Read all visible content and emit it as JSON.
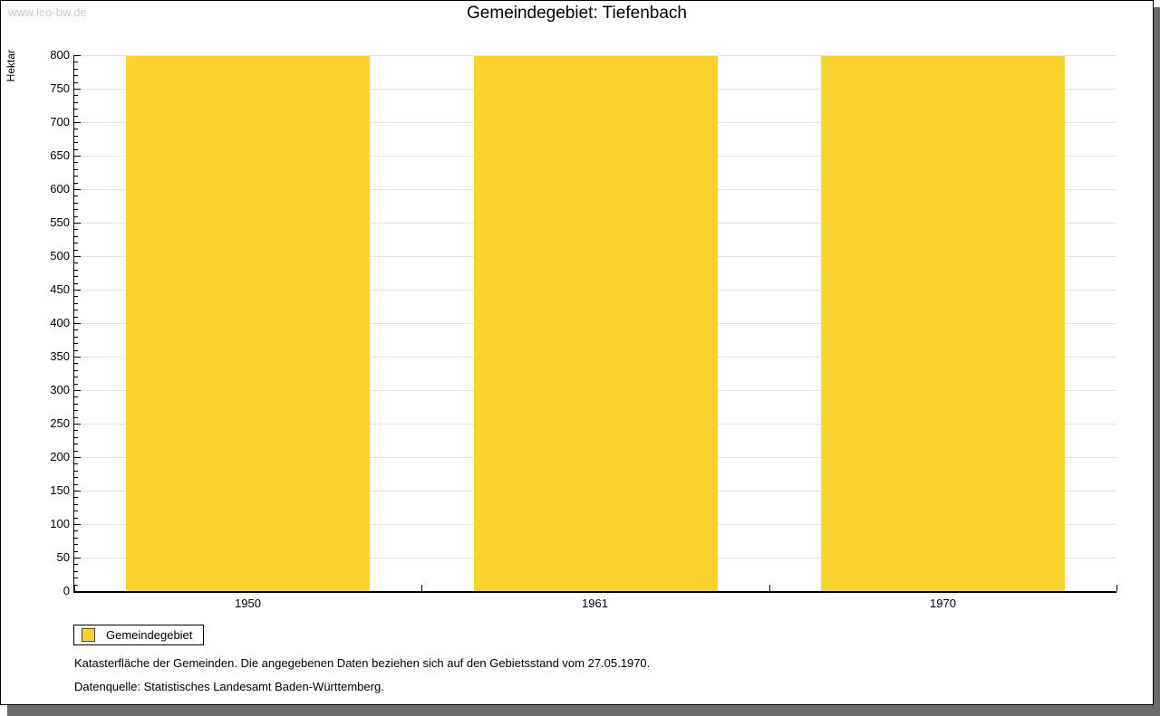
{
  "watermark": "www.leo-bw.de",
  "title": "Gemeindegebiet: Tiefenbach",
  "chart_data": {
    "type": "bar",
    "title": "Gemeindegebiet: Tiefenbach",
    "categories": [
      "1950",
      "1961",
      "1970"
    ],
    "series": [
      {
        "name": "Gemeindegebiet",
        "values": [
          798,
          798,
          798
        ]
      }
    ],
    "xlabel": "",
    "ylabel": "Hektar",
    "ylim": [
      0,
      800
    ],
    "ytick_step": 50,
    "minor_tick_step": 10,
    "grid": true,
    "bar_color": "#fcd42d",
    "gridline_color": "#e2e2e2",
    "legend_position": "bottom-left"
  },
  "legend": {
    "items": [
      {
        "label": "Gemeindegebiet",
        "color": "#fcd42d"
      }
    ]
  },
  "footer": {
    "line1": "Katasterfläche der Gemeinden. Die angegebenen Daten beziehen sich auf den Gebietsstand vom 27.05.1970.",
    "line2": "Datenquelle: Statistisches Landesamt Baden-Württemberg."
  },
  "colors": {
    "bar": "#fcd42d",
    "gridline": "#e2e2e2",
    "axis": "#000000",
    "watermark": "#c9c9c9",
    "frame_shadow": "#6b6b6b",
    "text": "#000000"
  }
}
